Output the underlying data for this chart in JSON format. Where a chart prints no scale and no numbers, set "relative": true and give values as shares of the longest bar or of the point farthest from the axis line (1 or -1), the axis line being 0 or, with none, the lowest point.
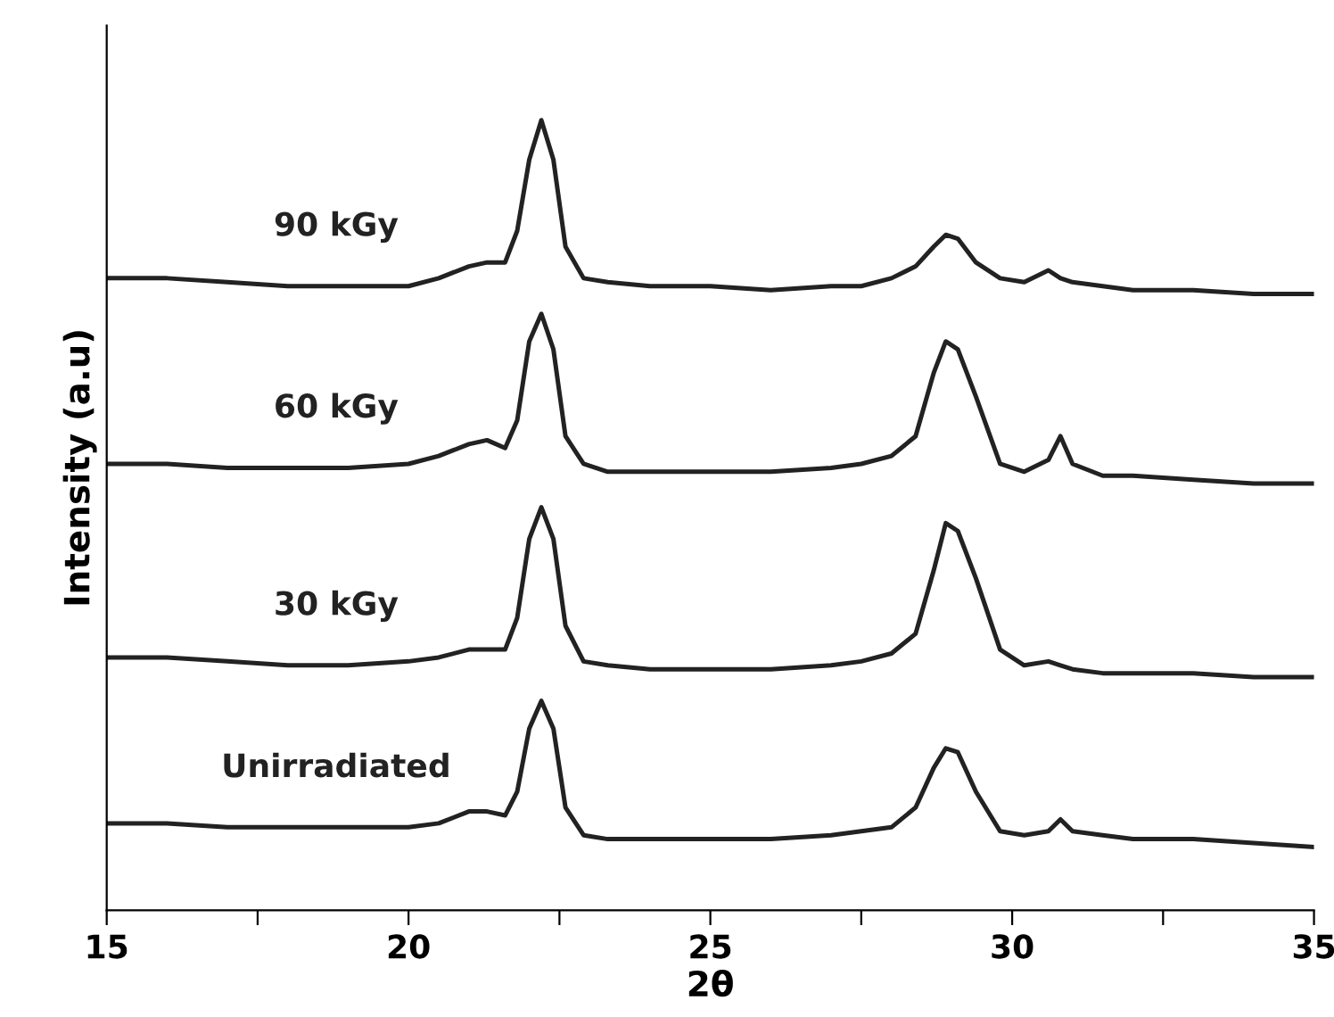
{
  "chart_data": {
    "type": "line",
    "relative": true,
    "xlabel": "2θ",
    "ylabel": "Intensity (a.u)",
    "xlim": [
      15,
      35
    ],
    "xticks": [
      15,
      {
        "value": 17.5,
        "label": null
      },
      20,
      {
        "value": 22.5,
        "label": null
      },
      25,
      {
        "value": 27.5,
        "label": null
      },
      30,
      {
        "value": 32.5,
        "label": null
      },
      35
    ],
    "x": [
      15,
      16,
      17,
      18,
      19,
      20,
      20.5,
      21,
      21.3,
      21.6,
      21.8,
      22.0,
      22.2,
      22.4,
      22.6,
      22.9,
      23.3,
      24,
      25,
      26,
      27,
      27.5,
      28,
      28.4,
      28.7,
      28.9,
      29.1,
      29.4,
      29.8,
      30.2,
      30.6,
      30.8,
      31,
      31.5,
      32,
      33,
      34,
      35
    ],
    "series": [
      {
        "name": "90 kGy",
        "color": "#222222",
        "values": [
          0.8,
          0.8,
          0.795,
          0.79,
          0.79,
          0.79,
          0.8,
          0.815,
          0.82,
          0.82,
          0.86,
          0.95,
          1.0,
          0.95,
          0.84,
          0.8,
          0.795,
          0.79,
          0.79,
          0.785,
          0.79,
          0.79,
          0.8,
          0.815,
          0.84,
          0.855,
          0.85,
          0.82,
          0.8,
          0.795,
          0.81,
          0.8,
          0.795,
          0.79,
          0.785,
          0.785,
          0.78,
          0.78
        ]
      },
      {
        "name": "60 kGy",
        "color": "#222222",
        "values": [
          0.565,
          0.565,
          0.56,
          0.56,
          0.56,
          0.565,
          0.575,
          0.59,
          0.595,
          0.585,
          0.62,
          0.72,
          0.755,
          0.71,
          0.6,
          0.565,
          0.555,
          0.555,
          0.555,
          0.555,
          0.56,
          0.565,
          0.575,
          0.6,
          0.68,
          0.72,
          0.71,
          0.65,
          0.565,
          0.555,
          0.57,
          0.6,
          0.565,
          0.55,
          0.55,
          0.545,
          0.54,
          0.54
        ]
      },
      {
        "name": "30 kGy",
        "color": "#222222",
        "values": [
          0.32,
          0.32,
          0.315,
          0.31,
          0.31,
          0.315,
          0.32,
          0.33,
          0.33,
          0.33,
          0.37,
          0.47,
          0.51,
          0.47,
          0.36,
          0.315,
          0.31,
          0.305,
          0.305,
          0.305,
          0.31,
          0.315,
          0.325,
          0.35,
          0.43,
          0.49,
          0.48,
          0.42,
          0.33,
          0.31,
          0.315,
          0.31,
          0.305,
          0.3,
          0.3,
          0.3,
          0.295,
          0.295
        ]
      },
      {
        "name": "Unirradiated",
        "color": "#222222",
        "values": [
          0.11,
          0.11,
          0.105,
          0.105,
          0.105,
          0.105,
          0.11,
          0.125,
          0.125,
          0.12,
          0.15,
          0.23,
          0.265,
          0.23,
          0.13,
          0.095,
          0.09,
          0.09,
          0.09,
          0.09,
          0.095,
          0.1,
          0.105,
          0.13,
          0.18,
          0.205,
          0.2,
          0.15,
          0.1,
          0.095,
          0.1,
          0.115,
          0.1,
          0.095,
          0.09,
          0.09,
          0.085,
          0.08
        ]
      }
    ],
    "marker": "none",
    "line_style": "solid",
    "grid": false,
    "legend": false
  }
}
